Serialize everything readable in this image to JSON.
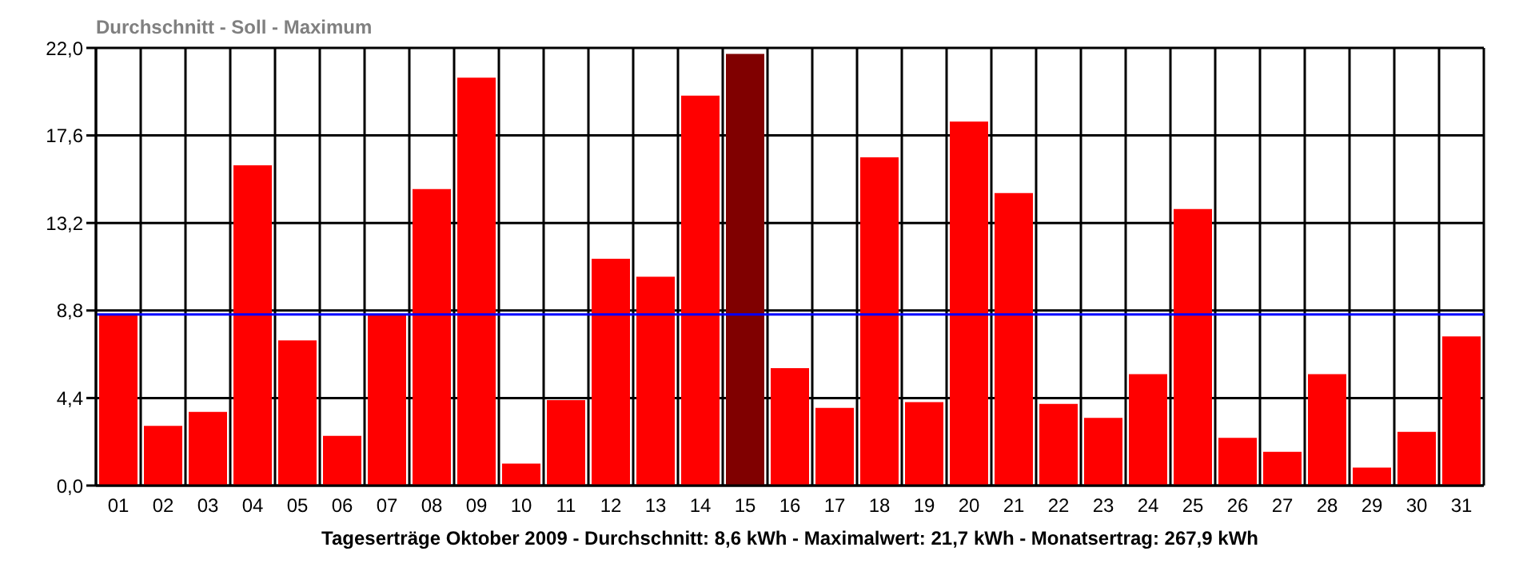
{
  "chart_data": {
    "type": "bar",
    "title": "Durchschnitt - Soll - Maximum",
    "xlabel": "Tageserträge Oktober 2009 - Durchschnitt: 8,6 kWh - Maximalwert: 21,7 kWh - Monatsertrag: 267,9 kWh",
    "categories": [
      "01",
      "02",
      "03",
      "04",
      "05",
      "06",
      "07",
      "08",
      "09",
      "10",
      "11",
      "12",
      "13",
      "14",
      "15",
      "16",
      "17",
      "18",
      "19",
      "20",
      "21",
      "22",
      "23",
      "24",
      "25",
      "26",
      "27",
      "28",
      "29",
      "30",
      "31"
    ],
    "values": [
      8.6,
      3.0,
      3.7,
      16.1,
      7.3,
      2.5,
      8.6,
      14.9,
      20.5,
      1.1,
      4.3,
      11.4,
      10.5,
      19.6,
      21.7,
      5.9,
      3.9,
      16.5,
      4.2,
      18.3,
      14.7,
      4.1,
      3.4,
      5.6,
      13.9,
      2.4,
      1.7,
      5.6,
      0.9,
      2.7,
      7.5
    ],
    "colors": [
      "#ff0000",
      "#ff0000",
      "#ff0000",
      "#ff0000",
      "#ff0000",
      "#ff0000",
      "#ff0000",
      "#ff0000",
      "#ff0000",
      "#ff0000",
      "#ff0000",
      "#ff0000",
      "#ff0000",
      "#ff0000",
      "#800000",
      "#ff0000",
      "#ff0000",
      "#ff0000",
      "#ff0000",
      "#ff0000",
      "#ff0000",
      "#ff0000",
      "#ff0000",
      "#ff0000",
      "#ff0000",
      "#ff0000",
      "#ff0000",
      "#ff0000",
      "#ff0000",
      "#ff0000",
      "#ff0000"
    ],
    "ylim": [
      0,
      22
    ],
    "yticks": [
      {
        "value": 0,
        "label": "0,0"
      },
      {
        "value": 4.4,
        "label": "4,4"
      },
      {
        "value": 8.8,
        "label": "8,8"
      },
      {
        "value": 13.2,
        "label": "13,2"
      },
      {
        "value": 17.6,
        "label": "17,6"
      },
      {
        "value": 22,
        "label": "22,0"
      }
    ],
    "ref_lines": [
      {
        "axis": "y",
        "value": 8.6,
        "label": null,
        "color": "#0000ff"
      }
    ],
    "grid": true
  }
}
